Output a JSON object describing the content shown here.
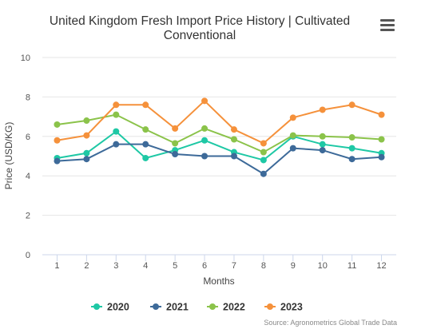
{
  "chart_data": {
    "type": "line",
    "title": "United Kingdom Fresh Import Price History | Cultivated Conventional",
    "xlabel": "Months",
    "ylabel": "Price (USD/KG)",
    "x": [
      1,
      2,
      3,
      4,
      5,
      6,
      7,
      8,
      9,
      10,
      11,
      12
    ],
    "ylim": [
      0,
      10
    ],
    "yticks": [
      0,
      2,
      4,
      6,
      8,
      10
    ],
    "grid": true,
    "legend": "bottom",
    "series": [
      {
        "name": "2020",
        "color": "#1ec8a5",
        "values": [
          4.9,
          5.15,
          6.25,
          4.9,
          5.3,
          5.8,
          5.2,
          4.8,
          6.0,
          5.6,
          5.4,
          5.15
        ]
      },
      {
        "name": "2021",
        "color": "#3d6a99",
        "values": [
          4.75,
          4.85,
          5.6,
          5.6,
          5.1,
          5.0,
          5.0,
          4.1,
          5.4,
          5.3,
          4.85,
          4.95
        ]
      },
      {
        "name": "2022",
        "color": "#8bc34a",
        "values": [
          6.6,
          6.8,
          7.1,
          6.35,
          5.65,
          6.4,
          5.85,
          5.2,
          6.05,
          6.0,
          5.95,
          5.85
        ]
      },
      {
        "name": "2023",
        "color": "#f5913b",
        "values": [
          5.8,
          6.05,
          7.6,
          7.6,
          6.4,
          7.8,
          6.35,
          5.65,
          6.95,
          7.35,
          7.6,
          7.1
        ]
      }
    ]
  },
  "menu_icon": "hamburger-menu-icon",
  "source": "Source: Agronometrics Global Trade Data"
}
